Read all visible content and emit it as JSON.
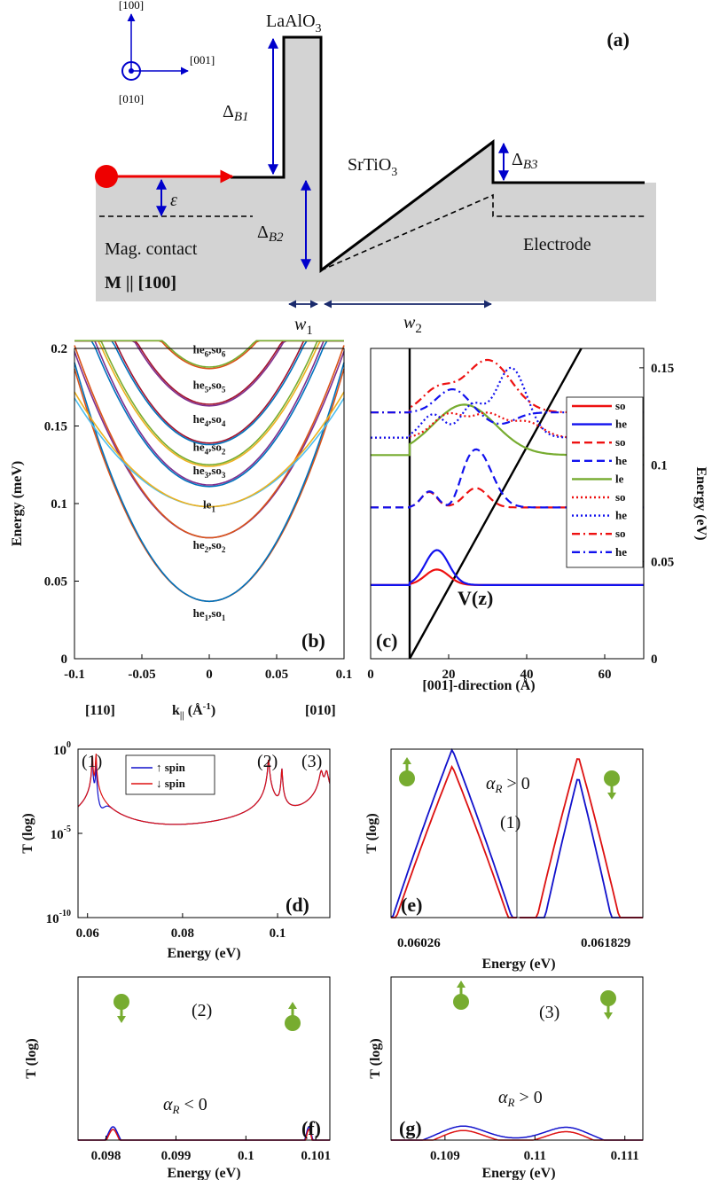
{
  "panel_a": {
    "panel_label": "(a)",
    "axis_x": "[001]",
    "axis_y": "[100]",
    "axis_z": "[010]",
    "barrier_label": "LaAlO",
    "barrier_sub": "3",
    "well_label": "SrTiO",
    "well_sub": "3",
    "delta_b1": "Δ",
    "delta_b1_sub": "B1",
    "delta_b2": "Δ",
    "delta_b2_sub": "B2",
    "delta_b3": "Δ",
    "delta_b3_sub": "B3",
    "epsilon": "ε",
    "contact": "Mag. contact",
    "magnetization": "M || [100]",
    "electrode": "Electrode",
    "w1": "w",
    "w1_sub": "1",
    "w2": "w",
    "w2_sub": "2",
    "colors": {
      "fill": "#d3d3d3",
      "arrow": "#0000cc",
      "electron": "#ee0000"
    }
  },
  "chart_data": [
    {
      "id": "b",
      "type": "line",
      "panel_label": "(b)",
      "ylabel": "Energy (meV)",
      "xlabel_left": "[110]",
      "xlabel_mid": "k",
      "xlabel_sub": "||",
      "xlabel_unit": "(Å",
      "xlabel_exp": "-1",
      "xlabel_close": ")",
      "xlabel_right": "[010]",
      "xlim": [
        -0.1,
        0.1
      ],
      "ylim": [
        0,
        0.2
      ],
      "xticks": [
        "-0.1",
        "-0.05",
        "0",
        "0.05",
        "0.1"
      ],
      "yticks": [
        "0",
        "0.05",
        "0.1",
        "0.15",
        "0.2"
      ],
      "state_labels": [
        {
          "base": "he",
          "sub": "6",
          "base2": ",so",
          "sub2": "6",
          "y": 0.197
        },
        {
          "base": "he",
          "sub": "5",
          "base2": ",so",
          "sub2": "5",
          "y": 0.174
        },
        {
          "base": "he",
          "sub": "4",
          "base2": ",so",
          "sub2": "4",
          "y": 0.152
        },
        {
          "base": "he",
          "sub": "4",
          "base2": ",so",
          "sub2": "2",
          "y": 0.134
        },
        {
          "base": "he",
          "sub": "3",
          "base2": ",so",
          "sub2": "3",
          "y": 0.119
        },
        {
          "base": "le",
          "sub": "1",
          "base2": "",
          "sub2": "",
          "y": 0.097
        },
        {
          "base": "he",
          "sub": "2",
          "base2": ",so",
          "sub2": "2",
          "y": 0.071
        },
        {
          "base": "he",
          "sub": "1",
          "base2": ",so",
          "sub2": "1",
          "y": 0.027
        }
      ],
      "series": [
        {
          "min": 0.037,
          "curv": 15.0,
          "color": "#d95319"
        },
        {
          "min": 0.037,
          "curv": 15.4,
          "color": "#0072bd"
        },
        {
          "min": 0.078,
          "curv": 12.0,
          "color": "#7e2f8e"
        },
        {
          "min": 0.078,
          "curv": 12.4,
          "color": "#d95319"
        },
        {
          "min": 0.098,
          "curv": 7.0,
          "color": "#4dbeee"
        },
        {
          "min": 0.098,
          "curv": 7.4,
          "color": "#edb120"
        },
        {
          "min": 0.111,
          "curv": 12.5,
          "color": "#0072bd"
        },
        {
          "min": 0.112,
          "curv": 12.9,
          "color": "#7e2f8e"
        },
        {
          "min": 0.124,
          "curv": 12.0,
          "color": "#edb120"
        },
        {
          "min": 0.125,
          "curv": 12.4,
          "color": "#77ac30"
        },
        {
          "min": 0.138,
          "curv": 13.0,
          "color": "#0072bd"
        },
        {
          "min": 0.139,
          "curv": 13.4,
          "color": "#a2142f"
        },
        {
          "min": 0.163,
          "curv": 13.5,
          "color": "#7e2f8e"
        },
        {
          "min": 0.164,
          "curv": 13.9,
          "color": "#a2142f"
        },
        {
          "min": 0.187,
          "curv": 14.0,
          "color": "#d95319"
        },
        {
          "min": 0.188,
          "curv": 14.4,
          "color": "#77ac30"
        }
      ]
    },
    {
      "id": "c",
      "type": "line",
      "panel_label": "(c)",
      "xlabel": "[001]-direction (Å)",
      "ylabel": "Energy (eV)",
      "potential_label": "V(z)",
      "xlim": [
        0,
        70
      ],
      "ylim": [
        0,
        0.16
      ],
      "xticks": [
        "0",
        "20",
        "40",
        "60"
      ],
      "yticks": [
        "0",
        "0.05",
        "0.1",
        "0.15"
      ],
      "legend": [
        {
          "label": "so",
          "color": "#ee1111",
          "dash": "solid"
        },
        {
          "label": "he",
          "color": "#1111ee",
          "dash": "solid"
        },
        {
          "label": "so",
          "color": "#ee1111",
          "dash": "dashed"
        },
        {
          "label": "he",
          "color": "#1111ee",
          "dash": "dashed"
        },
        {
          "label": "le",
          "color": "#77ac30",
          "dash": "solid"
        },
        {
          "label": "so",
          "color": "#ee1111",
          "dash": "dotted"
        },
        {
          "label": "he",
          "color": "#1111ee",
          "dash": "dotted"
        },
        {
          "label": "so",
          "color": "#ee1111",
          "dash": "dashdot"
        },
        {
          "label": "he",
          "color": "#1111ee",
          "dash": "dashdot"
        }
      ]
    },
    {
      "id": "d",
      "type": "line",
      "panel_label": "(d)",
      "xlabel": "Energy (eV)",
      "ylabel": "T (log)",
      "xlim": [
        0.058,
        0.111
      ],
      "xticks": [
        "0.06",
        "0.08",
        "0.1"
      ],
      "yticks": [
        "10",
        "10",
        "10"
      ],
      "ytick_exps": [
        "0",
        "-5",
        "-10"
      ],
      "peaks": [
        "(1)",
        "(2)",
        "(3)"
      ],
      "legend": [
        {
          "label": "↑ spin",
          "color": "#1111cc"
        },
        {
          "label": "↓ spin",
          "color": "#dd1111"
        }
      ]
    },
    {
      "id": "e",
      "type": "line",
      "panel_label": "(e)",
      "xlabel": "Energy (eV)",
      "ylabel": "T (log)",
      "xticks": [
        "0.06026",
        "0.061829"
      ],
      "annotation": "α",
      "annotation_sub": "R",
      "annotation_rel": " > 0",
      "peak": "(1)"
    },
    {
      "id": "f",
      "type": "line",
      "panel_label": "(f)",
      "xlabel": "Energy (eV)",
      "ylabel": "T (log)",
      "xticks": [
        "0.098",
        "0.099",
        "0.1",
        "0.101"
      ],
      "annotation": "α",
      "annotation_sub": "R",
      "annotation_rel": " < 0",
      "peak": "(2)"
    },
    {
      "id": "g",
      "type": "line",
      "panel_label": "(g)",
      "xlabel": "Energy (eV)",
      "ylabel": "T (log)",
      "xticks": [
        "0.109",
        "0.11",
        "0.111"
      ],
      "annotation": "α",
      "annotation_sub": "R",
      "annotation_rel": " > 0",
      "peak": "(3)"
    }
  ]
}
